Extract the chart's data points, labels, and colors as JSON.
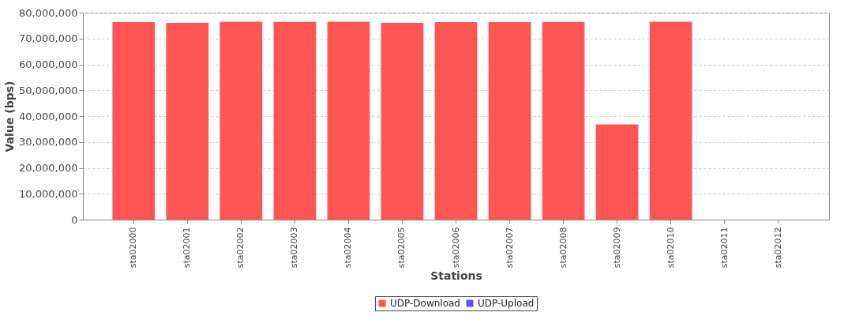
{
  "chart_data": {
    "type": "bar",
    "xlabel": "Stations",
    "ylabel": "Value (bps)",
    "categories": [
      "sta02000",
      "sta02001",
      "sta02002",
      "sta02003",
      "sta02004",
      "sta02005",
      "sta02006",
      "sta02007",
      "sta02008",
      "sta02009",
      "sta02010",
      "sta02011",
      "sta02012"
    ],
    "series": [
      {
        "name": "UDP-Download",
        "color": "#ff5555",
        "values": [
          76300000,
          76000000,
          76500000,
          76400000,
          76500000,
          76000000,
          76300000,
          76300000,
          76400000,
          36800000,
          76500000,
          0,
          0
        ]
      },
      {
        "name": "UDP-Upload",
        "color": "#5555ff",
        "values": [
          0,
          0,
          0,
          0,
          0,
          0,
          0,
          0,
          0,
          0,
          0,
          0,
          0
        ]
      }
    ],
    "stacked": true,
    "ylim": [
      0,
      80000000
    ],
    "yticks": [
      0,
      {
        "value": 10000000,
        "label": "10,000,000"
      },
      {
        "value": 20000000,
        "label": "20,000,000"
      },
      {
        "value": 30000000,
        "label": "30,000,000"
      },
      {
        "value": 40000000,
        "label": "40,000,000"
      },
      {
        "value": 50000000,
        "label": "50,000,000"
      },
      {
        "value": 60000000,
        "label": "60,000,000"
      },
      {
        "value": 70000000,
        "label": "70,000,000"
      },
      {
        "value": 80000000,
        "label": "80,000,000"
      }
    ],
    "grid": "y",
    "legend": "bottom"
  }
}
